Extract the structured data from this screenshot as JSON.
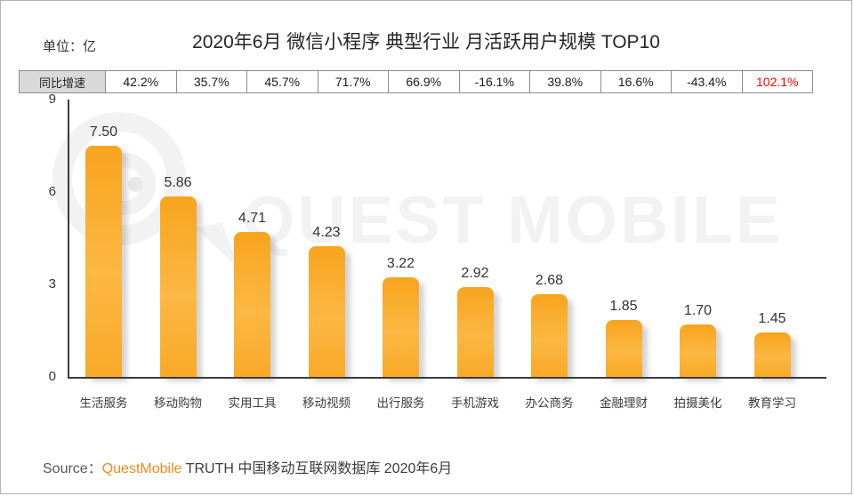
{
  "page": {
    "unit_label": "单位：亿",
    "title": "2020年6月 微信小程序 典型行业 月活跃用户规模 TOP10",
    "watermark_text": "QUEST MOBILE",
    "watermark_logo": "questmobile-q-speech-bubble-logo",
    "source": {
      "prefix": "Source：",
      "brand": "QuestMobile",
      "rest": " TRUTH 中国移动互联网数据库 2020年6月"
    },
    "colors": {
      "bar_orange_top": "#F8A41D",
      "bar_orange_bottom": "#F9A927",
      "brand_orange": "#F28A1E",
      "highlight_red": "#FF0000",
      "table_header_bg": "#D9D9D9"
    }
  },
  "chart_data": {
    "type": "bar",
    "title": "2020年6月 微信小程序 典型行业 月活跃用户规模 TOP10",
    "unit": "单位：亿",
    "categories": [
      "生活服务",
      "移动购物",
      "实用工具",
      "移动视频",
      "出行服务",
      "手机游戏",
      "办公商务",
      "金融理财",
      "拍摄美化",
      "教育学习"
    ],
    "values": [
      7.5,
      5.86,
      4.71,
      4.23,
      3.22,
      2.92,
      2.68,
      1.85,
      1.7,
      1.45
    ],
    "value_labels": [
      "7.50",
      "5.86",
      "4.71",
      "4.23",
      "3.22",
      "2.92",
      "2.68",
      "1.85",
      "1.70",
      "1.45"
    ],
    "yoy_label": "同比增速",
    "yoy_growth": [
      "42.2%",
      "35.7%",
      "45.7%",
      "71.7%",
      "66.9%",
      "-16.1%",
      "39.8%",
      "16.6%",
      "-43.4%",
      "102.1%"
    ],
    "yoy_highlight_index": 9,
    "yticks": [
      0,
      3,
      6,
      9
    ],
    "ylim": [
      0,
      9
    ],
    "grid": false,
    "legend": false,
    "xlabel": "",
    "ylabel": "单位：亿"
  }
}
